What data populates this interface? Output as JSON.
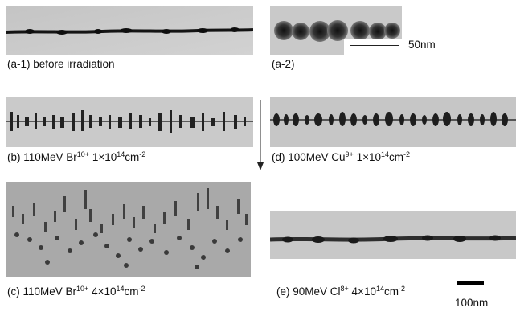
{
  "figure": {
    "captions": {
      "a1": {
        "text": "(a-1) before irradiation"
      },
      "a2": {
        "text": "(a-2)"
      },
      "b": {
        "prefix": "(b) 110MeV Br",
        "charge": "10+",
        "dose": " 1×10",
        "exp": "14",
        "unit": "cm",
        "unit_exp": "-2"
      },
      "c": {
        "prefix": "(c) 110MeV Br",
        "charge": "10+",
        "dose": " 4×10",
        "exp": "14",
        "unit": "cm",
        "unit_exp": "-2"
      },
      "d": {
        "prefix": "(d) 100MeV Cu",
        "charge": "9+",
        "dose": " 1×10",
        "exp": "14",
        "unit": "cm",
        "unit_exp": "-2"
      },
      "e": {
        "prefix": "(e) 90MeV Cl",
        "charge": "8+",
        "dose": " 4×10",
        "exp": "14",
        "unit": "cm",
        "unit_exp": "-2"
      }
    },
    "scale_bars": {
      "small": "50nm",
      "large": "100nm"
    }
  }
}
